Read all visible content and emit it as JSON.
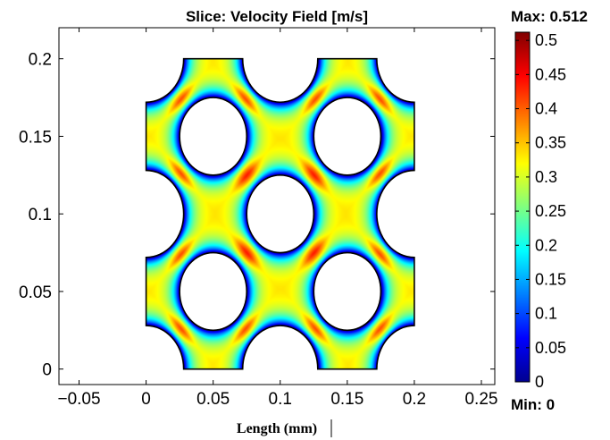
{
  "chart_data": {
    "type": "heatmap",
    "title": "Slice: Velocity Field [m/s]",
    "xlabel": "Length (mm)",
    "ylabel": "",
    "xlim": [
      -0.065,
      0.26
    ],
    "ylim": [
      -0.01,
      0.22
    ],
    "x_ticks": [
      -0.05,
      0,
      0.05,
      0.1,
      0.15,
      0.2,
      0.25
    ],
    "x_tick_labels": [
      "−0.05",
      "0",
      "0.05",
      "0.1",
      "0.15",
      "0.2",
      "0.25"
    ],
    "y_ticks": [
      0,
      0.05,
      0.1,
      0.15,
      0.2
    ],
    "y_tick_labels": [
      "0",
      "0.05",
      "0.1",
      "0.15",
      "0.2"
    ],
    "colorbar": {
      "colormap": "jet",
      "min_value": 0,
      "max_value": 0.512,
      "max_label": "Max: 0.512",
      "min_label": "Min: 0",
      "ticks": [
        0,
        0.05,
        0.1,
        0.15,
        0.2,
        0.25,
        0.3,
        0.35,
        0.4,
        0.45,
        0.5
      ],
      "tick_labels": [
        "0",
        "0.05",
        "0.1",
        "0.15",
        "0.2",
        "0.25",
        "0.3",
        "0.35",
        "0.4",
        "0.45",
        "0.5"
      ]
    },
    "domain": {
      "x_range": [
        0,
        0.2
      ],
      "y_range": [
        0,
        0.2
      ],
      "obstacles_full": [
        [
          0.05,
          0.15
        ],
        [
          0.15,
          0.15
        ],
        [
          0.1,
          0.1
        ],
        [
          0.05,
          0.05
        ],
        [
          0.15,
          0.05
        ]
      ],
      "obstacle_radius": 0.025,
      "boundary_cutouts": [
        [
          0,
          0
        ],
        [
          0.1,
          0
        ],
        [
          0.2,
          0
        ],
        [
          0,
          0.1
        ],
        [
          0.2,
          0.1
        ],
        [
          0,
          0.2
        ],
        [
          0.1,
          0.2
        ],
        [
          0.2,
          0.2
        ]
      ],
      "boundary_cutout_radius": 0.028
    },
    "grid": false
  }
}
